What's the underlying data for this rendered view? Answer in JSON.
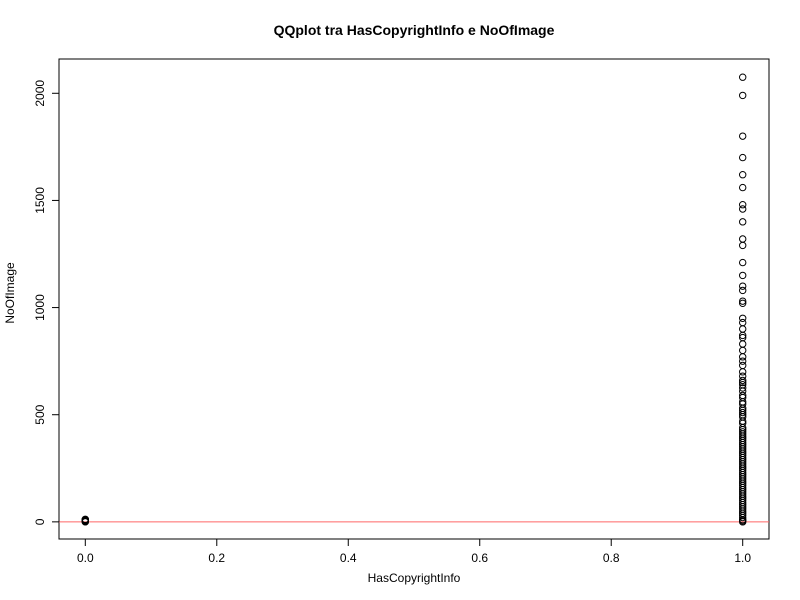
{
  "chart_data": {
    "type": "scatter",
    "title": "QQplot tra HasCopyrightInfo e NoOfImage",
    "xlabel": "HasCopyrightInfo",
    "ylabel": "NoOfImage",
    "xlim": [
      -0.04,
      1.04
    ],
    "ylim": [
      -80,
      2160
    ],
    "x_ticks": [
      "0.0",
      "0.2",
      "0.4",
      "0.6",
      "0.8",
      "1.0"
    ],
    "y_ticks": [
      "0",
      "500",
      "1000",
      "1500",
      "2000"
    ],
    "grid": false,
    "marker": "open-circle",
    "reference_line": {
      "type": "horizontal",
      "y": 0,
      "color": "#ff6666"
    },
    "series": [
      {
        "points": [
          {
            "x": 0,
            "y": 0
          },
          {
            "x": 0,
            "y": 2
          },
          {
            "x": 0,
            "y": 4
          },
          {
            "x": 0,
            "y": 6
          },
          {
            "x": 0,
            "y": 8
          },
          {
            "x": 0,
            "y": 10
          },
          {
            "x": 0,
            "y": 12
          },
          {
            "x": 1,
            "y": 2075
          },
          {
            "x": 1,
            "y": 1990
          },
          {
            "x": 1,
            "y": 1800
          },
          {
            "x": 1,
            "y": 1700
          },
          {
            "x": 1,
            "y": 1620
          },
          {
            "x": 1,
            "y": 1560
          },
          {
            "x": 1,
            "y": 1480
          },
          {
            "x": 1,
            "y": 1460
          },
          {
            "x": 1,
            "y": 1400
          },
          {
            "x": 1,
            "y": 1320
          },
          {
            "x": 1,
            "y": 1290
          },
          {
            "x": 1,
            "y": 1210
          },
          {
            "x": 1,
            "y": 1150
          },
          {
            "x": 1,
            "y": 1100
          },
          {
            "x": 1,
            "y": 1080
          },
          {
            "x": 1,
            "y": 1030
          },
          {
            "x": 1,
            "y": 1020
          },
          {
            "x": 1,
            "y": 950
          },
          {
            "x": 1,
            "y": 930
          },
          {
            "x": 1,
            "y": 900
          },
          {
            "x": 1,
            "y": 870
          },
          {
            "x": 1,
            "y": 860
          },
          {
            "x": 1,
            "y": 830
          },
          {
            "x": 1,
            "y": 800
          },
          {
            "x": 1,
            "y": 770
          },
          {
            "x": 1,
            "y": 750
          },
          {
            "x": 1,
            "y": 730
          },
          {
            "x": 1,
            "y": 700
          },
          {
            "x": 1,
            "y": 680
          },
          {
            "x": 1,
            "y": 660
          },
          {
            "x": 1,
            "y": 650
          },
          {
            "x": 1,
            "y": 640
          },
          {
            "x": 1,
            "y": 625
          },
          {
            "x": 1,
            "y": 610
          },
          {
            "x": 1,
            "y": 590
          },
          {
            "x": 1,
            "y": 580
          },
          {
            "x": 1,
            "y": 560
          },
          {
            "x": 1,
            "y": 550
          },
          {
            "x": 1,
            "y": 530
          },
          {
            "x": 1,
            "y": 520
          },
          {
            "x": 1,
            "y": 510
          },
          {
            "x": 1,
            "y": 500
          },
          {
            "x": 1,
            "y": 490
          },
          {
            "x": 1,
            "y": 470
          },
          {
            "x": 1,
            "y": 460
          },
          {
            "x": 1,
            "y": 440
          },
          {
            "x": 1,
            "y": 430
          },
          {
            "x": 1,
            "y": 420
          },
          {
            "x": 1,
            "y": 410
          },
          {
            "x": 1,
            "y": 400
          },
          {
            "x": 1,
            "y": 390
          },
          {
            "x": 1,
            "y": 380
          },
          {
            "x": 1,
            "y": 370
          },
          {
            "x": 1,
            "y": 360
          },
          {
            "x": 1,
            "y": 350
          },
          {
            "x": 1,
            "y": 340
          },
          {
            "x": 1,
            "y": 330
          },
          {
            "x": 1,
            "y": 320
          },
          {
            "x": 1,
            "y": 310
          },
          {
            "x": 1,
            "y": 300
          },
          {
            "x": 1,
            "y": 290
          },
          {
            "x": 1,
            "y": 280
          },
          {
            "x": 1,
            "y": 270
          },
          {
            "x": 1,
            "y": 260
          },
          {
            "x": 1,
            "y": 250
          },
          {
            "x": 1,
            "y": 240
          },
          {
            "x": 1,
            "y": 230
          },
          {
            "x": 1,
            "y": 220
          },
          {
            "x": 1,
            "y": 210
          },
          {
            "x": 1,
            "y": 200
          },
          {
            "x": 1,
            "y": 190
          },
          {
            "x": 1,
            "y": 180
          },
          {
            "x": 1,
            "y": 170
          },
          {
            "x": 1,
            "y": 160
          },
          {
            "x": 1,
            "y": 150
          },
          {
            "x": 1,
            "y": 140
          },
          {
            "x": 1,
            "y": 130
          },
          {
            "x": 1,
            "y": 120
          },
          {
            "x": 1,
            "y": 110
          },
          {
            "x": 1,
            "y": 100
          },
          {
            "x": 1,
            "y": 90
          },
          {
            "x": 1,
            "y": 80
          },
          {
            "x": 1,
            "y": 70
          },
          {
            "x": 1,
            "y": 60
          },
          {
            "x": 1,
            "y": 50
          },
          {
            "x": 1,
            "y": 40
          },
          {
            "x": 1,
            "y": 30
          },
          {
            "x": 1,
            "y": 20
          },
          {
            "x": 1,
            "y": 10
          },
          {
            "x": 1,
            "y": 5
          },
          {
            "x": 1,
            "y": 0
          }
        ]
      }
    ]
  }
}
